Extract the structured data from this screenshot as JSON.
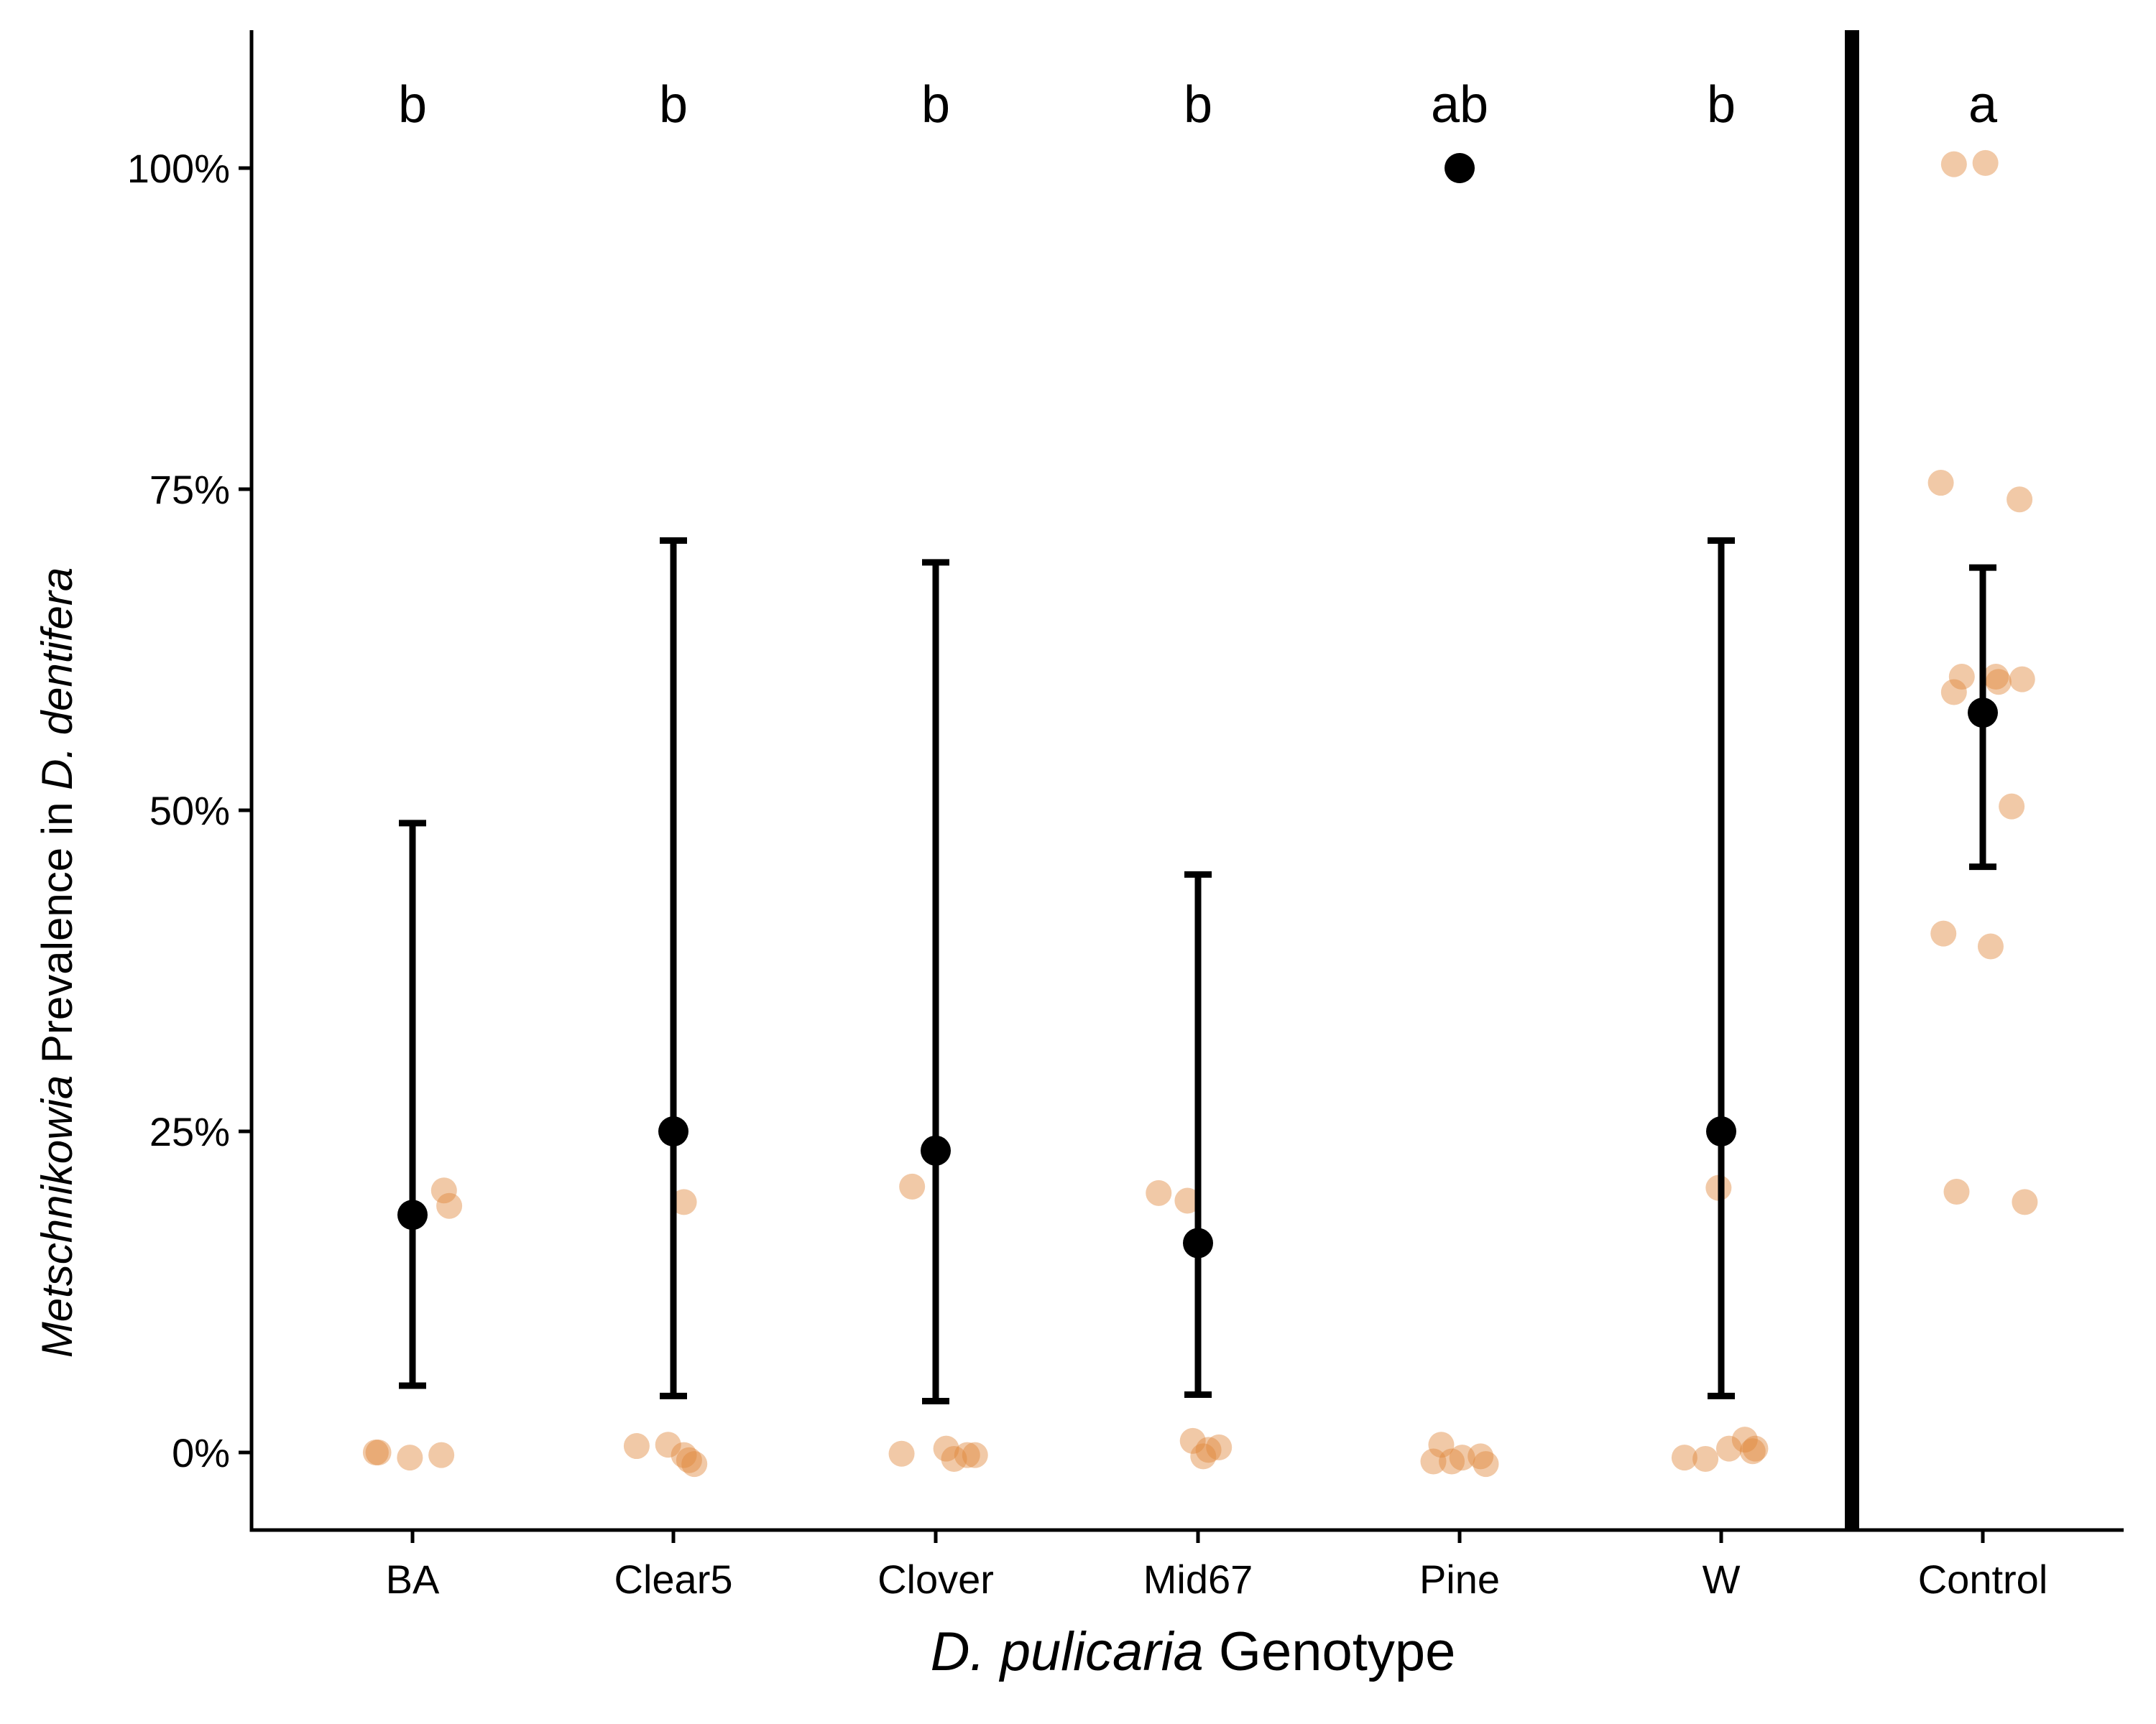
{
  "chart_data": {
    "type": "scatter",
    "xlabel": {
      "italic": "D. pulicaria",
      "rest": " Genotype"
    },
    "ylabel": {
      "italic1": "Metschnikowia",
      "mid": "  Prevalence in ",
      "italic2": "D. dentifera"
    },
    "categories": [
      "BA",
      "Clear5",
      "Clover",
      "Mid67",
      "Pine",
      "W",
      "Control"
    ],
    "yticks": [
      "0%",
      "25%",
      "50%",
      "75%",
      "100%"
    ],
    "ylim": [
      -0.06,
      1.1
    ],
    "letters": [
      "b",
      "b",
      "b",
      "b",
      "ab",
      "b",
      "a"
    ],
    "means": [
      {
        "category": "BA",
        "mean": 0.185,
        "lower": 0.052,
        "upper": 0.49
      },
      {
        "category": "Clear5",
        "mean": 0.25,
        "lower": 0.044,
        "upper": 0.71
      },
      {
        "category": "Clover",
        "mean": 0.235,
        "lower": 0.04,
        "upper": 0.693
      },
      {
        "category": "Mid67",
        "mean": 0.163,
        "lower": 0.045,
        "upper": 0.45
      },
      {
        "category": "Pine",
        "mean": 1.0
      },
      {
        "category": "W",
        "mean": 0.25,
        "lower": 0.044,
        "upper": 0.71
      },
      {
        "category": "Control",
        "mean": 0.576,
        "lower": 0.456,
        "upper": 0.689
      }
    ],
    "raw_points": [
      {
        "category": "BA",
        "points": [
          [
            -0.13,
            0.0
          ],
          [
            -0.14,
            0.0
          ],
          [
            -0.01,
            -0.004
          ],
          [
            0.11,
            -0.002
          ],
          [
            0.12,
            0.204
          ],
          [
            0.14,
            0.192
          ]
        ]
      },
      {
        "category": "Clear5",
        "points": [
          [
            -0.14,
            0.005
          ],
          [
            -0.02,
            0.006
          ],
          [
            0.04,
            -0.002
          ],
          [
            0.06,
            -0.006
          ],
          [
            0.08,
            -0.009
          ],
          [
            0.04,
            0.195
          ]
        ]
      },
      {
        "category": "Clover",
        "points": [
          [
            -0.13,
            -0.001
          ],
          [
            0.04,
            0.003
          ],
          [
            0.07,
            -0.005
          ],
          [
            0.12,
            -0.002
          ],
          [
            0.15,
            -0.002
          ],
          [
            -0.09,
            0.207
          ]
        ]
      },
      {
        "category": "Mid67",
        "points": [
          [
            -0.15,
            0.202
          ],
          [
            -0.04,
            0.196
          ],
          [
            -0.02,
            0.009
          ],
          [
            0.02,
            -0.003
          ],
          [
            0.04,
            0.002
          ],
          [
            0.08,
            0.004
          ]
        ]
      },
      {
        "category": "Pine",
        "points": [
          [
            -0.1,
            -0.007
          ],
          [
            -0.07,
            0.006
          ],
          [
            -0.03,
            -0.007
          ],
          [
            0.01,
            -0.004
          ],
          [
            0.08,
            -0.003
          ],
          [
            0.1,
            -0.009
          ]
        ]
      },
      {
        "category": "W",
        "points": [
          [
            -0.14,
            -0.004
          ],
          [
            -0.06,
            -0.005
          ],
          [
            0.03,
            0.003
          ],
          [
            0.09,
            0.01
          ],
          [
            0.12,
            0.001
          ],
          [
            0.13,
            0.003
          ],
          [
            -0.01,
            0.206
          ]
        ]
      },
      {
        "category": "Control",
        "points": [
          [
            -0.11,
            1.003
          ],
          [
            0.01,
            1.004
          ],
          [
            -0.16,
            0.755
          ],
          [
            0.14,
            0.742
          ],
          [
            -0.08,
            0.604
          ],
          [
            -0.11,
            0.592
          ],
          [
            0.05,
            0.604
          ],
          [
            0.06,
            0.6
          ],
          [
            0.15,
            0.602
          ],
          [
            0.11,
            0.503
          ],
          [
            -0.15,
            0.404
          ],
          [
            0.03,
            0.394
          ],
          [
            -0.1,
            0.203
          ],
          [
            0.16,
            0.195
          ]
        ]
      }
    ],
    "separator_after": "W",
    "colors": {
      "raw_points": "#e0883c",
      "means": "#000000",
      "axis": "#000000"
    },
    "grid": false,
    "legend": "none"
  }
}
